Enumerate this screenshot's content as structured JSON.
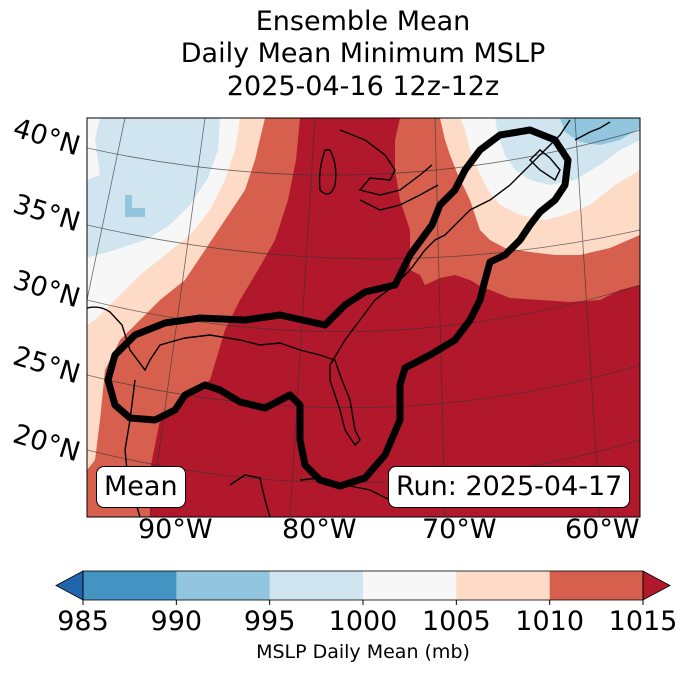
{
  "title": {
    "line1": "Ensemble Mean",
    "line2": "Daily Mean Minimum MSLP",
    "line3": "2025-04-16 12z-12z"
  },
  "map": {
    "projection": "conic",
    "region": "Eastern North America / Gulf of Mexico / Western Atlantic",
    "latitude_labels": [
      "40°N",
      "35°N",
      "30°N",
      "25°N",
      "20°N"
    ],
    "longitude_labels": [
      "90°W",
      "80°W",
      "70°W",
      "60°W"
    ],
    "contour_description": "Thick black outline enclosing Gulf of Mexico, Florida and US East Coast to Nova Scotia",
    "low_marker": "L",
    "left_box": "Mean",
    "right_box": "Run: 2025-04-17"
  },
  "colorbar": {
    "label": "MSLP Daily Mean (mb)",
    "ticks": [
      "985",
      "990",
      "995",
      "1000",
      "1005",
      "1010",
      "1015"
    ],
    "levels": [
      985,
      990,
      995,
      1000,
      1005,
      1010,
      1015
    ],
    "colors": {
      "under": "#2166ac",
      "b985_990": "#4393c3",
      "b990_995": "#92c5de",
      "b995_1000": "#d1e5f0",
      "b1000_1005": "#f7f7f7",
      "b1005_1010": "#fddbc7",
      "b1010_1015": "#d6604d",
      "over": "#b2182b"
    },
    "extend": "both"
  }
}
